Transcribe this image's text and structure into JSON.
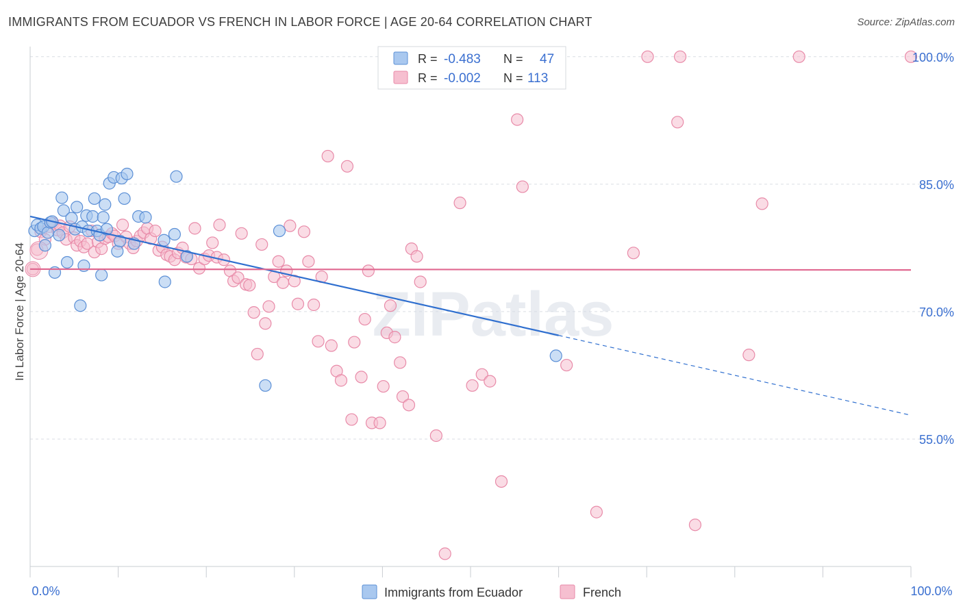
{
  "header": {
    "title": "IMMIGRANTS FROM ECUADOR VS FRENCH IN LABOR FORCE | AGE 20-64 CORRELATION CHART",
    "source": "Source: ZipAtlas.com"
  },
  "watermark": "ZIPatlas",
  "chart_data": {
    "type": "scatter",
    "ylabel": "In Labor Force | Age 20-64",
    "xlim": [
      0,
      100
    ],
    "ylim": [
      40,
      102
    ],
    "x_tick_labels": [
      "0.0%",
      "100.0%"
    ],
    "y_ticks": [
      55,
      70,
      85,
      100
    ],
    "y_tick_labels": [
      "55.0%",
      "70.0%",
      "85.0%",
      "100.0%"
    ],
    "grid": "horizontal dashed",
    "legend_position": "top-center",
    "stats": [
      {
        "r_label": "R =",
        "r_value": "-0.483",
        "n_label": "N =",
        "n_value": "47"
      },
      {
        "r_label": "R =",
        "r_value": "-0.002",
        "n_label": "N =",
        "n_value": "113"
      }
    ],
    "colors": {
      "ecuador_fill": "#a9c8ef",
      "ecuador_stroke": "#5b8fd6",
      "ecuador_line": "#2f6fcf",
      "french_fill": "#f6bfd0",
      "french_stroke": "#e88aa8",
      "french_line": "#e06890",
      "value_text": "#3a6fd0",
      "grid": "#d9dde3"
    },
    "series": [
      {
        "name": "Immigrants from Ecuador",
        "trend": {
          "x0": 0,
          "y0": 81.2,
          "x1": 60,
          "y1": 67.2,
          "dash_to_x": 100,
          "dash_to_y": 57.8
        },
        "points": [
          [
            0.5,
            79.5
          ],
          [
            0.8,
            80.2
          ],
          [
            1.2,
            79.8
          ],
          [
            1.5,
            80.0
          ],
          [
            1.7,
            77.8
          ],
          [
            2.0,
            79.3
          ],
          [
            2.3,
            80.5
          ],
          [
            2.5,
            80.6
          ],
          [
            2.8,
            74.6
          ],
          [
            3.3,
            79.0
          ],
          [
            3.6,
            83.4
          ],
          [
            3.8,
            81.9
          ],
          [
            4.2,
            75.8
          ],
          [
            4.7,
            81.0
          ],
          [
            5.1,
            79.7
          ],
          [
            5.3,
            82.3
          ],
          [
            5.7,
            70.7
          ],
          [
            5.9,
            80.0
          ],
          [
            6.1,
            75.4
          ],
          [
            6.4,
            81.3
          ],
          [
            6.6,
            79.5
          ],
          [
            7.1,
            81.2
          ],
          [
            7.3,
            83.3
          ],
          [
            7.6,
            79.5
          ],
          [
            7.9,
            79.0
          ],
          [
            8.1,
            74.3
          ],
          [
            8.3,
            81.1
          ],
          [
            8.5,
            82.6
          ],
          [
            8.7,
            79.7
          ],
          [
            9.0,
            85.1
          ],
          [
            9.5,
            85.8
          ],
          [
            9.9,
            77.1
          ],
          [
            10.2,
            78.3
          ],
          [
            10.4,
            85.7
          ],
          [
            10.7,
            83.3
          ],
          [
            11.0,
            86.2
          ],
          [
            11.8,
            78.0
          ],
          [
            12.3,
            81.2
          ],
          [
            13.1,
            81.1
          ],
          [
            15.2,
            78.4
          ],
          [
            15.3,
            73.5
          ],
          [
            16.4,
            79.1
          ],
          [
            16.6,
            85.9
          ],
          [
            17.8,
            76.5
          ],
          [
            26.7,
            61.3
          ],
          [
            28.3,
            79.5
          ],
          [
            59.7,
            64.8
          ]
        ]
      },
      {
        "name": "French",
        "trend": {
          "x0": 0,
          "y0": 75.0,
          "x1": 100,
          "y1": 74.9
        },
        "points": [
          [
            0.3,
            75.0
          ],
          [
            0.8,
            77.3
          ],
          [
            1.2,
            79.4
          ],
          [
            1.7,
            78.5
          ],
          [
            2.2,
            80.0
          ],
          [
            2.6,
            80.4
          ],
          [
            3.1,
            79.6
          ],
          [
            3.4,
            80.1
          ],
          [
            3.7,
            79.3
          ],
          [
            4.1,
            78.5
          ],
          [
            4.5,
            80.0
          ],
          [
            5.0,
            78.7
          ],
          [
            5.3,
            77.8
          ],
          [
            5.7,
            78.3
          ],
          [
            6.1,
            77.6
          ],
          [
            6.5,
            78.0
          ],
          [
            7.0,
            79.5
          ],
          [
            7.3,
            77.0
          ],
          [
            7.7,
            78.2
          ],
          [
            8.1,
            77.4
          ],
          [
            8.5,
            78.6
          ],
          [
            8.9,
            78.8
          ],
          [
            9.3,
            79.2
          ],
          [
            9.6,
            78.9
          ],
          [
            10.0,
            78.0
          ],
          [
            10.5,
            80.2
          ],
          [
            10.9,
            78.8
          ],
          [
            11.3,
            78.0
          ],
          [
            11.7,
            77.5
          ],
          [
            12.1,
            78.3
          ],
          [
            12.5,
            78.9
          ],
          [
            12.9,
            79.3
          ],
          [
            13.3,
            79.8
          ],
          [
            13.7,
            78.6
          ],
          [
            14.2,
            79.5
          ],
          [
            14.6,
            77.2
          ],
          [
            15.0,
            77.6
          ],
          [
            15.5,
            76.7
          ],
          [
            15.9,
            76.5
          ],
          [
            16.4,
            76.1
          ],
          [
            16.8,
            76.9
          ],
          [
            17.3,
            77.5
          ],
          [
            17.7,
            76.4
          ],
          [
            18.3,
            76.2
          ],
          [
            18.7,
            79.8
          ],
          [
            19.2,
            75.1
          ],
          [
            19.8,
            76.2
          ],
          [
            20.3,
            76.6
          ],
          [
            20.7,
            78.1
          ],
          [
            21.2,
            76.4
          ],
          [
            21.5,
            80.2
          ],
          [
            22.0,
            76.1
          ],
          [
            22.7,
            74.8
          ],
          [
            23.1,
            73.6
          ],
          [
            23.6,
            74.0
          ],
          [
            24.0,
            79.2
          ],
          [
            24.5,
            73.2
          ],
          [
            24.9,
            73.1
          ],
          [
            25.4,
            69.9
          ],
          [
            25.8,
            65.0
          ],
          [
            26.3,
            77.9
          ],
          [
            26.7,
            68.6
          ],
          [
            27.1,
            70.6
          ],
          [
            27.7,
            74.1
          ],
          [
            28.2,
            75.9
          ],
          [
            28.7,
            73.4
          ],
          [
            29.1,
            74.8
          ],
          [
            29.5,
            80.1
          ],
          [
            30.0,
            73.6
          ],
          [
            30.4,
            70.9
          ],
          [
            31.1,
            79.4
          ],
          [
            31.6,
            75.9
          ],
          [
            32.2,
            70.8
          ],
          [
            32.7,
            66.5
          ],
          [
            33.1,
            74.1
          ],
          [
            33.8,
            88.3
          ],
          [
            34.2,
            66.0
          ],
          [
            34.8,
            63.0
          ],
          [
            35.3,
            61.9
          ],
          [
            36.0,
            87.1
          ],
          [
            36.5,
            57.3
          ],
          [
            36.8,
            66.4
          ],
          [
            37.6,
            62.3
          ],
          [
            38.0,
            69.1
          ],
          [
            38.4,
            74.8
          ],
          [
            38.8,
            56.9
          ],
          [
            39.7,
            56.9
          ],
          [
            40.1,
            61.2
          ],
          [
            40.5,
            67.5
          ],
          [
            40.9,
            70.7
          ],
          [
            41.4,
            67.0
          ],
          [
            42.0,
            64.0
          ],
          [
            42.3,
            60.0
          ],
          [
            43.0,
            59.0
          ],
          [
            43.3,
            77.4
          ],
          [
            43.9,
            76.5
          ],
          [
            44.3,
            73.5
          ],
          [
            46.1,
            55.4
          ],
          [
            48.8,
            82.8
          ],
          [
            50.2,
            61.3
          ],
          [
            51.3,
            62.6
          ],
          [
            52.2,
            61.8
          ],
          [
            53.5,
            50.0
          ],
          [
            55.3,
            92.6
          ],
          [
            55.9,
            84.7
          ],
          [
            59.0,
            100.0
          ],
          [
            60.9,
            63.7
          ],
          [
            64.3,
            46.4
          ],
          [
            68.5,
            76.9
          ],
          [
            70.1,
            100.0
          ],
          [
            73.5,
            92.3
          ],
          [
            73.8,
            100.0
          ],
          [
            75.5,
            44.9
          ],
          [
            81.6,
            64.9
          ],
          [
            83.1,
            82.7
          ],
          [
            87.3,
            100.0
          ],
          [
            100.0,
            100.0
          ],
          [
            47.1,
            41.5
          ]
        ]
      }
    ]
  }
}
